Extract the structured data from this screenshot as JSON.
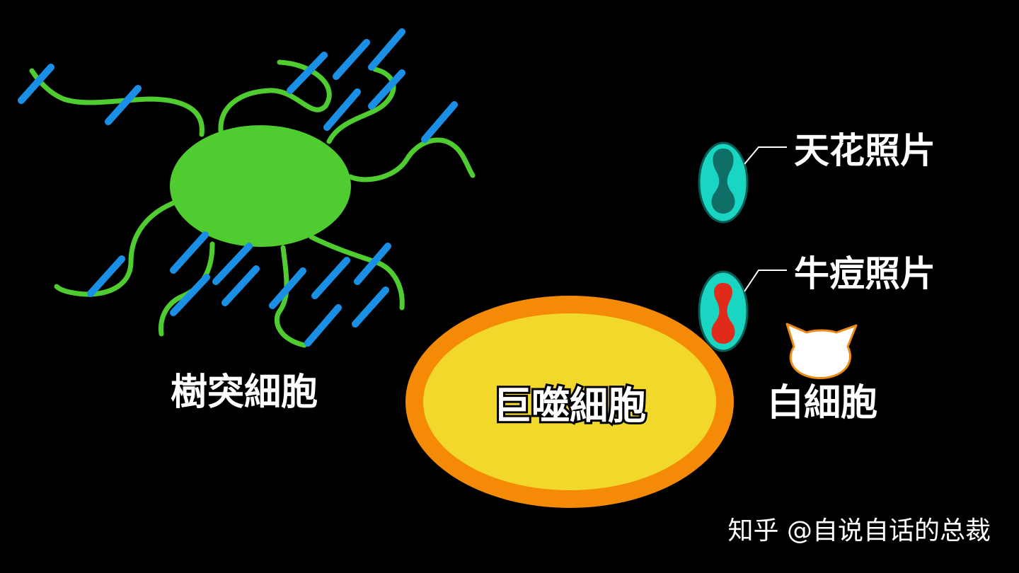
{
  "labels": {
    "dendritic_cell": "樹突細胞",
    "macrophage": "巨噬細胞",
    "white_blood_cell": "白細胞",
    "smallpox_photo": "天花照片",
    "cowpox_photo": "牛痘照片"
  },
  "watermark": "知乎 @自说自话的总裁",
  "colors": {
    "background": "#000000",
    "dendritic_cell": "#4fcc2f",
    "antigen_rods": "#1a8fe6",
    "macrophage_fill": "#f2d82a",
    "macrophage_ring": "#f58a07",
    "photo_card": "#19d6c2",
    "smallpox_mark": "#0f6f66",
    "cowpox_mark": "#e02a1a",
    "white_blood_cell_fill": "#ffffff",
    "white_blood_cell_outline": "#f08a17",
    "text": "#ffffff"
  },
  "icons": {
    "smallpox_card": "smallpox-photo-icon",
    "cowpox_card": "cowpox-photo-icon",
    "white_blood_cell": "cat-head-icon"
  }
}
